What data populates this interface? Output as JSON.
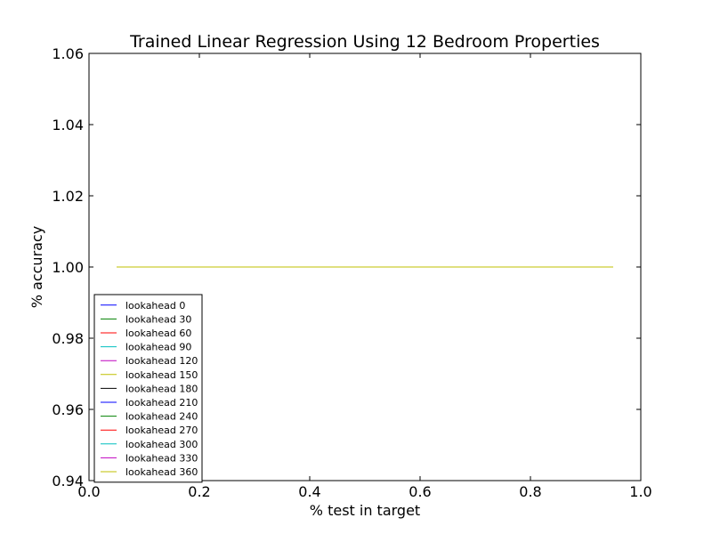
{
  "chart_data": {
    "type": "line",
    "title": "Trained Linear Regression Using 12 Bedroom Properties",
    "xlabel": "% test in target",
    "ylabel": "% accuracy",
    "xlim": [
      0.0,
      1.0
    ],
    "ylim": [
      0.94,
      1.06
    ],
    "xticks": [
      "0.0",
      "0.2",
      "0.4",
      "0.6",
      "0.8",
      "1.0"
    ],
    "yticks": [
      "0.94",
      "0.96",
      "0.98",
      "1.00",
      "1.02",
      "1.04",
      "1.06"
    ],
    "grid": false,
    "legend_position": "lower-left",
    "x": [
      0.05,
      0.95
    ],
    "series": [
      {
        "name": "lookahead 0",
        "color": "#0000ff",
        "values": [
          1.0,
          1.0
        ]
      },
      {
        "name": "lookahead 30",
        "color": "#008000",
        "values": [
          1.0,
          1.0
        ]
      },
      {
        "name": "lookahead 60",
        "color": "#ff0000",
        "values": [
          1.0,
          1.0
        ]
      },
      {
        "name": "lookahead 90",
        "color": "#00bfbf",
        "values": [
          1.0,
          1.0
        ]
      },
      {
        "name": "lookahead 120",
        "color": "#bf00bf",
        "values": [
          1.0,
          1.0
        ]
      },
      {
        "name": "lookahead 150",
        "color": "#bfbf00",
        "values": [
          1.0,
          1.0
        ]
      },
      {
        "name": "lookahead 180",
        "color": "#000000",
        "values": [
          1.0,
          1.0
        ]
      },
      {
        "name": "lookahead 210",
        "color": "#0000ff",
        "values": [
          1.0,
          1.0
        ]
      },
      {
        "name": "lookahead 240",
        "color": "#008000",
        "values": [
          1.0,
          1.0
        ]
      },
      {
        "name": "lookahead 270",
        "color": "#ff0000",
        "values": [
          1.0,
          1.0
        ]
      },
      {
        "name": "lookahead 300",
        "color": "#00bfbf",
        "values": [
          1.0,
          1.0
        ]
      },
      {
        "name": "lookahead 330",
        "color": "#bf00bf",
        "values": [
          1.0,
          1.0
        ]
      },
      {
        "name": "lookahead 360",
        "color": "#bfbf00",
        "values": [
          1.0,
          1.0
        ]
      }
    ]
  }
}
